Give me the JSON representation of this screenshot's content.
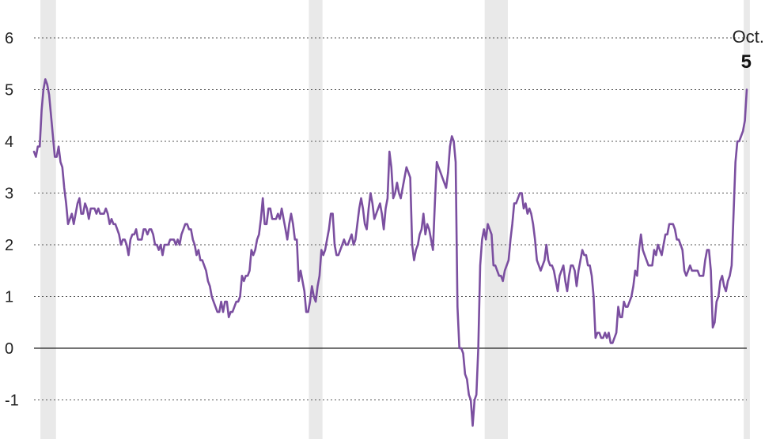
{
  "chart_data": {
    "type": "line",
    "title": "",
    "xlabel": "",
    "ylabel": "",
    "ylim": [
      -1.5,
      6
    ],
    "yticks": [
      -1,
      0,
      1,
      2,
      3,
      4,
      5,
      6
    ],
    "grid": true,
    "zero_line": true,
    "colors": {
      "line": "#7b4fa0",
      "shade": "#e9e9e9",
      "grid": "#555555",
      "zero": "#222222"
    },
    "end_label": {
      "month": "Oct.",
      "value": "5"
    },
    "series": [
      {
        "values": [
          3.8,
          3.7,
          3.9,
          3.9,
          4.6,
          5.0,
          5.2,
          5.1,
          4.9,
          4.5,
          4.1,
          3.7,
          3.7,
          3.9,
          3.6,
          3.5,
          3.1,
          2.8,
          2.4,
          2.5,
          2.6,
          2.4,
          2.6,
          2.8,
          2.9,
          2.6,
          2.6,
          2.8,
          2.7,
          2.5,
          2.7,
          2.7,
          2.7,
          2.6,
          2.7,
          2.6,
          2.6,
          2.6,
          2.7,
          2.6,
          2.4,
          2.5,
          2.4,
          2.4,
          2.3,
          2.2,
          2.0,
          2.1,
          2.1,
          2.0,
          1.8,
          2.1,
          2.2,
          2.2,
          2.3,
          2.1,
          2.1,
          2.1,
          2.3,
          2.3,
          2.2,
          2.3,
          2.3,
          2.2,
          2.0,
          2.0,
          1.9,
          2.0,
          1.8,
          2.0,
          2.0,
          2.0,
          2.1,
          2.1,
          2.1,
          2.0,
          2.1,
          2.0,
          2.2,
          2.3,
          2.4,
          2.4,
          2.3,
          2.3,
          2.1,
          2.0,
          1.8,
          1.9,
          1.7,
          1.7,
          1.6,
          1.5,
          1.3,
          1.2,
          1.0,
          0.9,
          0.8,
          0.7,
          0.7,
          0.9,
          0.7,
          0.9,
          0.9,
          0.6,
          0.7,
          0.7,
          0.8,
          0.9,
          0.9,
          1.0,
          1.4,
          1.3,
          1.4,
          1.4,
          1.5,
          1.9,
          1.8,
          1.9,
          2.1,
          2.2,
          2.5,
          2.9,
          2.4,
          2.4,
          2.7,
          2.7,
          2.5,
          2.5,
          2.5,
          2.6,
          2.5,
          2.7,
          2.5,
          2.3,
          2.1,
          2.4,
          2.6,
          2.4,
          2.1,
          2.1,
          1.3,
          1.5,
          1.3,
          1.1,
          0.7,
          0.7,
          0.9,
          1.2,
          1.0,
          0.9,
          1.2,
          1.4,
          1.9,
          1.8,
          1.9,
          2.1,
          2.3,
          2.6,
          2.6,
          2.0,
          1.8,
          1.8,
          1.9,
          2.0,
          2.1,
          2.0,
          2.0,
          2.1,
          2.2,
          2.0,
          2.1,
          2.4,
          2.7,
          2.9,
          2.7,
          2.4,
          2.3,
          2.7,
          3.0,
          2.8,
          2.5,
          2.6,
          2.7,
          2.8,
          2.6,
          2.3,
          2.7,
          2.9,
          3.8,
          3.5,
          2.9,
          3.0,
          3.2,
          3.0,
          2.9,
          3.1,
          3.3,
          3.5,
          3.4,
          3.3,
          2.0,
          1.7,
          1.9,
          2.0,
          2.2,
          2.3,
          2.6,
          2.2,
          2.4,
          2.3,
          2.1,
          1.9,
          2.8,
          3.6,
          3.5,
          3.4,
          3.3,
          3.2,
          3.1,
          3.4,
          3.9,
          4.1,
          4.0,
          3.6,
          0.8,
          0.0,
          0.0,
          -0.1,
          -0.5,
          -0.6,
          -0.9,
          -1.0,
          -1.5,
          -1.0,
          -0.9,
          0.0,
          1.6,
          2.1,
          2.3,
          2.1,
          2.4,
          2.3,
          2.2,
          1.6,
          1.6,
          1.5,
          1.4,
          1.4,
          1.3,
          1.5,
          1.6,
          1.7,
          2.1,
          2.4,
          2.8,
          2.8,
          2.9,
          3.0,
          3.0,
          2.7,
          2.8,
          2.6,
          2.7,
          2.6,
          2.4,
          2.1,
          1.7,
          1.6,
          1.5,
          1.6,
          1.7,
          2.0,
          1.7,
          1.6,
          1.6,
          1.5,
          1.3,
          1.1,
          1.4,
          1.5,
          1.6,
          1.3,
          1.1,
          1.4,
          1.6,
          1.6,
          1.5,
          1.2,
          1.5,
          1.7,
          1.9,
          1.8,
          1.8,
          1.6,
          1.6,
          1.4,
          1.0,
          0.2,
          0.3,
          0.3,
          0.2,
          0.2,
          0.3,
          0.2,
          0.3,
          0.1,
          0.1,
          0.2,
          0.3,
          0.8,
          0.6,
          0.6,
          0.9,
          0.8,
          0.8,
          0.9,
          1.0,
          1.2,
          1.5,
          1.4,
          1.9,
          2.2,
          1.9,
          1.8,
          1.7,
          1.6,
          1.6,
          1.6,
          1.9,
          1.8,
          2.0,
          1.9,
          1.8,
          2.0,
          2.2,
          2.2,
          2.4,
          2.4,
          2.4,
          2.3,
          2.1,
          2.1,
          2.0,
          1.9,
          1.5,
          1.4,
          1.5,
          1.6,
          1.5,
          1.5,
          1.5,
          1.5,
          1.4,
          1.4,
          1.4,
          1.7,
          1.9,
          1.9,
          1.5,
          0.4,
          0.5,
          0.9,
          1.0,
          1.3,
          1.4,
          1.2,
          1.1,
          1.3,
          1.4,
          1.6,
          2.6,
          3.6,
          4.0,
          4.0,
          4.1,
          4.2,
          4.4,
          5.0
        ]
      }
    ],
    "shaded_periods": [
      {
        "start_index": 4,
        "end_index": 11
      },
      {
        "start_index": 146,
        "end_index": 152
      },
      {
        "start_index": 239,
        "end_index": 250
      },
      {
        "start_index": 376,
        "end_index": 378
      }
    ]
  }
}
